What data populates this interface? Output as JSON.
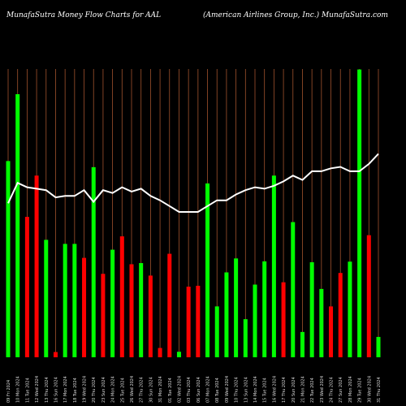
{
  "header": {
    "left": "MunafaSutra  Money Flow  Charts for AAL",
    "right": "(American  Airlines Group, Inc.) MunafaSutra.com"
  },
  "chart_data": {
    "type": "bar",
    "title": "MunafaSutra  Money Flow  Charts for AAL",
    "subtitle": "(American  Airlines Group, Inc.) MunafaSutra.com",
    "xlabel": "",
    "ylabel": "",
    "grid": true,
    "ylim": [
      0,
      1
    ],
    "colors": {
      "up": "#00ff00",
      "down": "#ff0000",
      "line": "#ffffff",
      "grid": "#a0522d",
      "background": "#000000"
    },
    "categories": [
      "09 Fri 2024",
      "10 Mon 2024",
      "11 Tue 2024",
      "12 Wed 2024",
      "13 Thu 2024",
      "16 Sun 2024",
      "17 Mon 2024",
      "18 Tue 2024",
      "19 Wed 2024",
      "20 Thu 2024",
      "23 Sun 2024",
      "24 Mon 2024",
      "25 Tue 2024",
      "26 Wed 2024",
      "27 Thu 2024",
      "30 Sun 2024",
      "31 Mon 2024",
      "01 Tue 2024",
      "02 Wed 2024",
      "03 Thu 2024",
      "06 Sun 2024",
      "07 Mon 2024",
      "08 Tue 2024",
      "09 Wed 2024",
      "10 Thu 2024",
      "13 Sun 2024",
      "14 Mon 2024",
      "15 Tue 2024",
      "16 Wed 2024",
      "17 Thu 2024",
      "20 Sun 2024",
      "21 Mon 2024",
      "22 Tue 2024",
      "23 Wed 2024",
      "24 Thu 2024",
      "27 Sun 2024",
      "28 Mon 2024",
      "29 Tue 2024",
      "30 Wed 2024",
      "31 Thu 2024"
    ],
    "series": [
      {
        "type": "bar",
        "values": [
          0.675,
          0.905,
          0.483,
          0.625,
          0.404,
          0.018,
          0.39,
          0.39,
          0.342,
          0.654,
          0.287,
          0.37,
          0.416,
          0.32,
          0.324,
          0.281,
          0.032,
          0.356,
          0.019,
          0.243,
          0.246,
          0.598,
          0.175,
          0.292,
          0.34,
          0.131,
          0.25,
          0.33,
          0.625,
          0.258,
          0.465,
          0.087,
          0.327,
          0.235,
          0.175,
          0.29,
          0.329,
          0.99,
          0.42,
          0.07
        ],
        "colors": [
          "up",
          "up",
          "down",
          "down",
          "up",
          "down",
          "up",
          "up",
          "down",
          "up",
          "down",
          "up",
          "down",
          "down",
          "up",
          "down",
          "down",
          "down",
          "up",
          "down",
          "down",
          "up",
          "up",
          "up",
          "up",
          "up",
          "up",
          "up",
          "up",
          "down",
          "up",
          "up",
          "up",
          "up",
          "down",
          "down",
          "up",
          "up",
          "down",
          "up"
        ]
      },
      {
        "type": "line",
        "values": [
          0.53,
          0.6,
          0.585,
          0.58,
          0.575,
          0.55,
          0.555,
          0.555,
          0.575,
          0.535,
          0.575,
          0.565,
          0.585,
          0.57,
          0.58,
          0.555,
          0.54,
          0.52,
          0.5,
          0.5,
          0.5,
          0.52,
          0.54,
          0.54,
          0.56,
          0.575,
          0.585,
          0.58,
          0.59,
          0.605,
          0.625,
          0.61,
          0.64,
          0.64,
          0.65,
          0.655,
          0.64,
          0.64,
          0.665,
          0.7
        ]
      }
    ]
  }
}
